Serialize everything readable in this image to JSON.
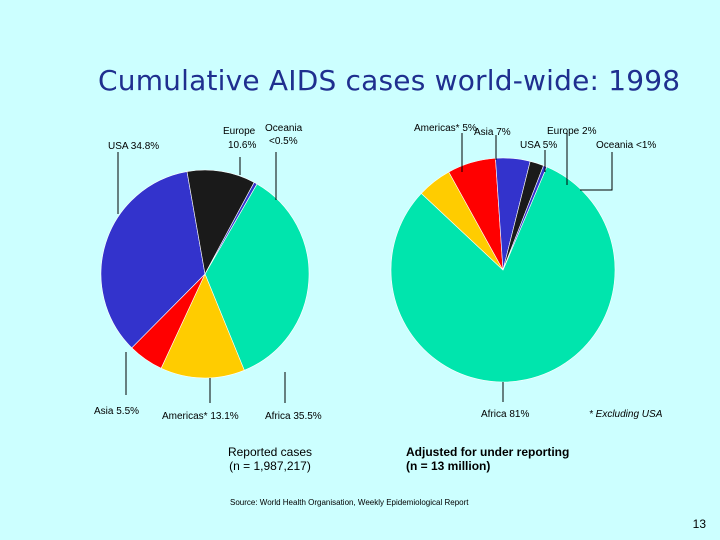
{
  "slide": {
    "title": "Cumulative AIDS cases world-wide: 1998",
    "source": "Source: World Health Organisation, Weekly Epidemiological Report",
    "page_number": "13",
    "footnote": "* Excluding USA"
  },
  "chart_data": [
    {
      "type": "pie",
      "caption_line1": "Reported cases",
      "caption_line2": "(n = 1,987,217)",
      "slices": [
        {
          "key": "africa",
          "name": "Africa",
          "label": "Africa 35.5%",
          "value": 35.5,
          "color": "#00e5ad"
        },
        {
          "key": "americas",
          "name": "Americas*",
          "label": "Americas* 13.1%",
          "value": 13.1,
          "color": "#ffcc00"
        },
        {
          "key": "asia",
          "name": "Asia",
          "label": "Asia 5.5%",
          "value": 5.5,
          "color": "#ff0000"
        },
        {
          "key": "usa",
          "name": "USA",
          "label": "USA 34.8%",
          "value": 34.8,
          "color": "#3333cc"
        },
        {
          "key": "europe",
          "name": "Europe",
          "label_line1": "Europe",
          "label_line2": "10.6%",
          "value": 10.6,
          "color": "#1a1a1a"
        },
        {
          "key": "oceania",
          "name": "Oceania",
          "label_line1": "Oceania",
          "label_line2": "<0.5%",
          "value": 0.5,
          "color": "#3333cc"
        }
      ]
    },
    {
      "type": "pie",
      "caption_line1": "Adjusted for under reporting",
      "caption_line2": "(n = 13 million)",
      "slices": [
        {
          "key": "africa",
          "name": "Africa",
          "label": "Africa 81%",
          "value": 81,
          "color": "#00e5ad"
        },
        {
          "key": "americas",
          "name": "Americas*",
          "label": "Americas* 5%",
          "value": 5,
          "color": "#ffcc00"
        },
        {
          "key": "asia",
          "name": "Asia",
          "label": "Asia 7%",
          "value": 7,
          "color": "#ff0000"
        },
        {
          "key": "usa",
          "name": "USA",
          "label": "USA 5%",
          "value": 5,
          "color": "#3333cc"
        },
        {
          "key": "europe",
          "name": "Europe",
          "label": "Europe 2%",
          "value": 2,
          "color": "#1a1a1a"
        },
        {
          "key": "oceania",
          "name": "Oceania",
          "label": "Oceania <1%",
          "value": 0.5,
          "color": "#3333cc"
        }
      ]
    }
  ]
}
